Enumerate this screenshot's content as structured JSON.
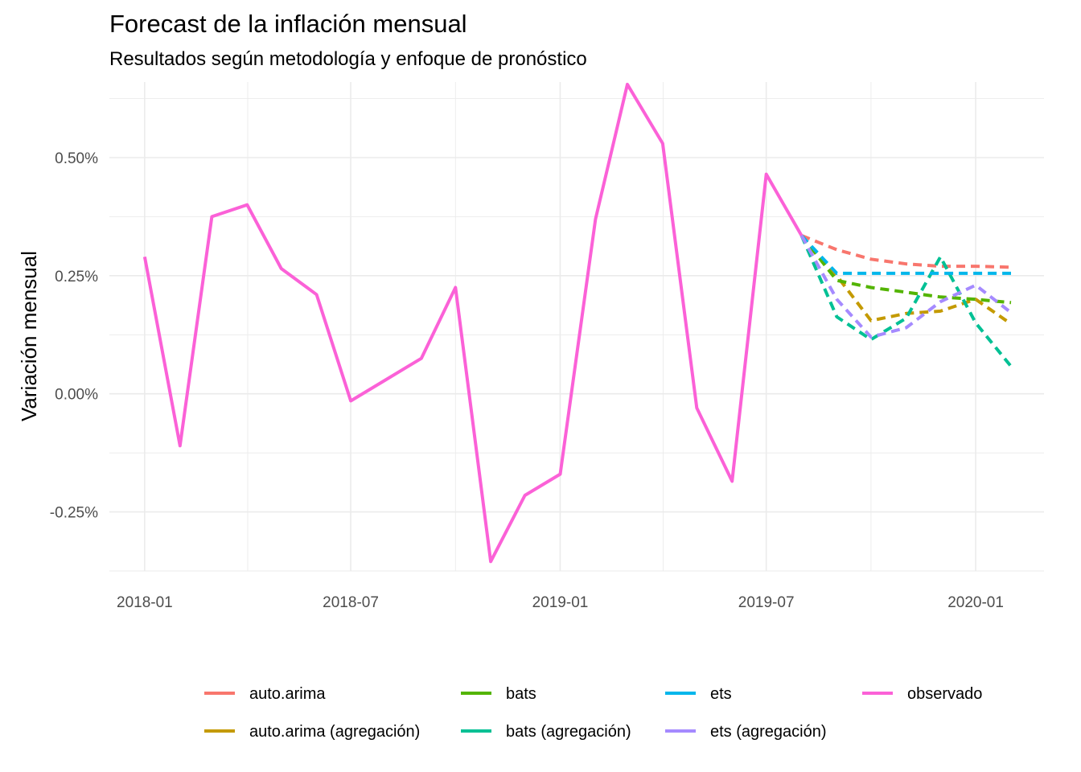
{
  "title": "Forecast de la inflación mensual",
  "subtitle": "Resultados según metodología y enfoque de pronóstico",
  "chart_data": {
    "type": "line",
    "title": "Forecast de la inflación mensual",
    "subtitle": "Resultados según metodología y enfoque de pronóstico",
    "xlabel": "",
    "ylabel": "Variación mensual",
    "xlim": [
      "2017-12-01",
      "2020-03-01"
    ],
    "ylim": [
      -0.375,
      0.66
    ],
    "x_ticks": [
      {
        "date": "2018-01-01",
        "label": "2018-01"
      },
      {
        "date": "2018-07-01",
        "label": "2018-07"
      },
      {
        "date": "2019-01-01",
        "label": "2019-01"
      },
      {
        "date": "2019-07-01",
        "label": "2019-07"
      },
      {
        "date": "2020-01-01",
        "label": "2020-01"
      }
    ],
    "y_ticks": [
      {
        "value": 0.5,
        "label": "0.50%"
      },
      {
        "value": 0.25,
        "label": "0.25%"
      },
      {
        "value": 0.0,
        "label": "0.00%"
      },
      {
        "value": -0.25,
        "label": "-0.25%"
      }
    ],
    "y_unit": "%",
    "grid": true,
    "legend_position": "bottom",
    "series": [
      {
        "name": "auto.arima",
        "color": "#F8766D",
        "dashed": true,
        "x": [
          "2019-08-01",
          "2019-09-01",
          "2019-10-01",
          "2019-11-01",
          "2019-12-01",
          "2020-01-01",
          "2020-02-01"
        ],
        "values": [
          0.335,
          0.305,
          0.285,
          0.275,
          0.27,
          0.27,
          0.268
        ]
      },
      {
        "name": "auto.arima (agregación)",
        "color": "#C49A00",
        "dashed": true,
        "x": [
          "2019-08-01",
          "2019-09-01",
          "2019-10-01",
          "2019-11-01",
          "2019-12-01",
          "2020-01-01",
          "2020-02-01"
        ],
        "values": [
          0.335,
          0.25,
          0.155,
          0.17,
          0.175,
          0.2,
          0.148
        ]
      },
      {
        "name": "bats",
        "color": "#53B400",
        "dashed": true,
        "x": [
          "2019-08-01",
          "2019-09-01",
          "2019-10-01",
          "2019-11-01",
          "2019-12-01",
          "2020-01-01",
          "2020-02-01"
        ],
        "values": [
          0.335,
          0.24,
          0.225,
          0.215,
          0.205,
          0.2,
          0.193
        ]
      },
      {
        "name": "bats (agregación)",
        "color": "#00C094",
        "dashed": true,
        "x": [
          "2019-08-01",
          "2019-09-01",
          "2019-10-01",
          "2019-11-01",
          "2019-12-01",
          "2020-01-01",
          "2020-02-01"
        ],
        "values": [
          0.335,
          0.163,
          0.115,
          0.16,
          0.29,
          0.15,
          0.058
        ]
      },
      {
        "name": "ets",
        "color": "#00B6EB",
        "dashed": true,
        "x": [
          "2019-08-01",
          "2019-09-01",
          "2019-10-01",
          "2019-11-01",
          "2019-12-01",
          "2020-01-01",
          "2020-02-01"
        ],
        "values": [
          0.335,
          0.255,
          0.255,
          0.255,
          0.255,
          0.255,
          0.255
        ]
      },
      {
        "name": "ets (agregación)",
        "color": "#A58AFF",
        "dashed": true,
        "x": [
          "2019-08-01",
          "2019-09-01",
          "2019-10-01",
          "2019-11-01",
          "2019-12-01",
          "2020-01-01",
          "2020-02-01"
        ],
        "values": [
          0.335,
          0.2,
          0.12,
          0.14,
          0.195,
          0.23,
          0.172
        ]
      },
      {
        "name": "observado",
        "color": "#FB61D7",
        "dashed": false,
        "x": [
          "2018-01-01",
          "2018-02-01",
          "2018-03-01",
          "2018-04-01",
          "2018-05-01",
          "2018-06-01",
          "2018-07-01",
          "2018-08-01",
          "2018-09-01",
          "2018-10-01",
          "2018-11-01",
          "2018-12-01",
          "2019-01-01",
          "2019-02-01",
          "2019-03-01",
          "2019-04-01",
          "2019-05-01",
          "2019-06-01",
          "2019-07-01",
          "2019-08-01"
        ],
        "values": [
          0.29,
          -0.11,
          0.375,
          0.4,
          0.265,
          0.21,
          -0.015,
          0.03,
          0.075,
          0.225,
          -0.355,
          -0.215,
          -0.17,
          0.37,
          0.655,
          0.53,
          -0.03,
          -0.185,
          0.465,
          0.335
        ]
      }
    ]
  },
  "legend": {
    "items": [
      {
        "label": "auto.arima",
        "color": "#F8766D"
      },
      {
        "label": "auto.arima (agregación)",
        "color": "#C49A00"
      },
      {
        "label": "bats",
        "color": "#53B400"
      },
      {
        "label": "bats (agregación)",
        "color": "#00C094"
      },
      {
        "label": "ets",
        "color": "#00B6EB"
      },
      {
        "label": "ets (agregación)",
        "color": "#A58AFF"
      },
      {
        "label": "observado",
        "color": "#FB61D7"
      }
    ]
  }
}
